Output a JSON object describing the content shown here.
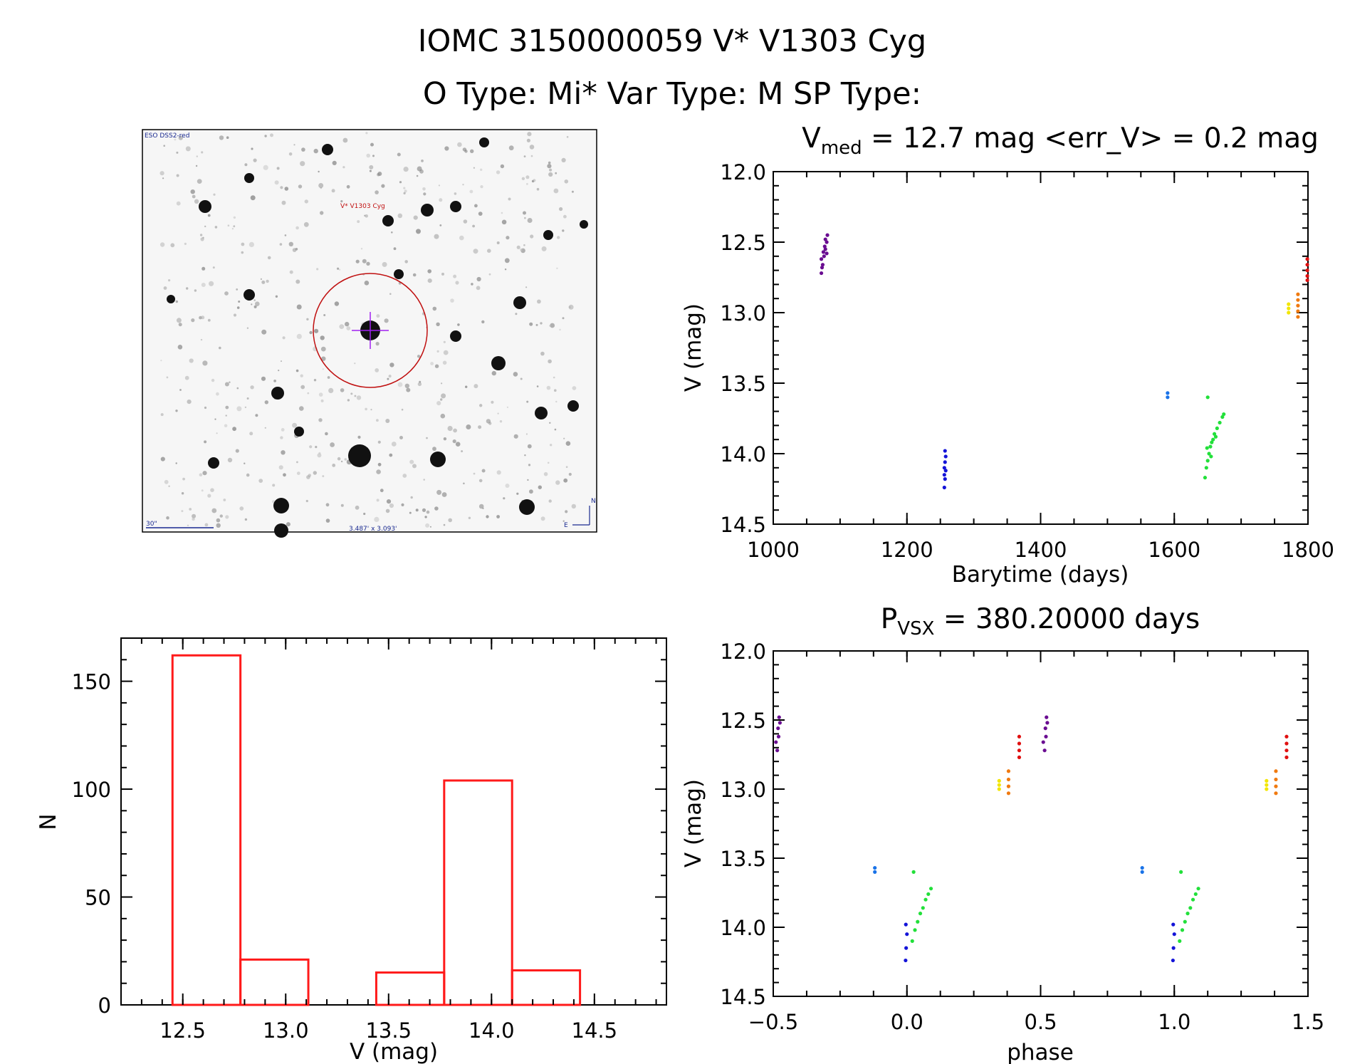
{
  "header": {
    "line1": "IOMC 3150000059   V* V1303 Cyg",
    "line2": "O Type: Mi*  Var Type: M  SP Type:"
  },
  "finder": {
    "survey_label": "ESO DSS2-red",
    "target_label": "V* V1303 Cyg",
    "scale_label": "30\"",
    "fov_label": "3.487' x 3.093'",
    "north_label": "N",
    "east_label": "E"
  },
  "colors": {
    "purple": "#6a0d91",
    "blue": "#1414d8",
    "lightblue": "#1a73e8",
    "green": "#22e03a",
    "yellow": "#f2e600",
    "orange": "#f07a10",
    "red": "#e01010",
    "hist": "#ff1a1a"
  },
  "chart_data": [
    {
      "id": "lightcurve",
      "type": "scatter",
      "title_prefix": "V",
      "title_sub": "med",
      "title_suffix": " = 12.7 mag <err_V> = 0.2 mag",
      "xlabel": "Barytime (days)",
      "ylabel": "V (mag)",
      "xlim": [
        1000,
        1800
      ],
      "ylim": [
        12.0,
        14.5
      ],
      "y_inverted": true,
      "xticks": [
        1000,
        1200,
        1400,
        1600,
        1800
      ],
      "yticks": [
        12.0,
        12.5,
        13.0,
        13.5,
        14.0,
        14.5
      ],
      "series": [
        {
          "name": "purple",
          "color": "#6a0d91",
          "x": [
            1072,
            1074,
            1076,
            1078,
            1080,
            1072,
            1075,
            1078,
            1081,
            1073,
            1077,
            1080
          ],
          "y": [
            12.72,
            12.66,
            12.6,
            12.55,
            12.5,
            12.62,
            12.57,
            12.48,
            12.45,
            12.68,
            12.53,
            12.58
          ]
        },
        {
          "name": "blue",
          "color": "#1414d8",
          "x": [
            1256,
            1257,
            1258,
            1256,
            1257,
            1258,
            1257,
            1256
          ],
          "y": [
            14.24,
            14.18,
            14.12,
            14.1,
            14.06,
            14.02,
            13.98,
            14.15
          ]
        },
        {
          "name": "lightblue",
          "color": "#1a73e8",
          "x": [
            1590,
            1590
          ],
          "y": [
            13.57,
            13.6
          ]
        },
        {
          "name": "green",
          "color": "#22e03a",
          "x": [
            1646,
            1648,
            1650,
            1652,
            1654,
            1656,
            1658,
            1660,
            1664,
            1668,
            1672,
            1674,
            1650,
            1655,
            1662,
            1649
          ],
          "y": [
            14.17,
            14.1,
            14.05,
            14.0,
            13.95,
            13.92,
            13.9,
            13.86,
            13.82,
            13.78,
            13.74,
            13.72,
            13.6,
            14.02,
            13.88,
            13.96
          ]
        },
        {
          "name": "yellow",
          "color": "#f2e600",
          "x": [
            1771,
            1771,
            1771
          ],
          "y": [
            12.94,
            12.97,
            13.0
          ]
        },
        {
          "name": "orange",
          "color": "#f07a10",
          "x": [
            1785,
            1785,
            1785,
            1785,
            1785
          ],
          "y": [
            12.87,
            12.91,
            12.95,
            12.99,
            13.03
          ]
        },
        {
          "name": "red",
          "color": "#e01010",
          "x": [
            1799,
            1799,
            1799,
            1799,
            1799
          ],
          "y": [
            12.62,
            12.66,
            12.7,
            12.74,
            12.77
          ]
        }
      ]
    },
    {
      "id": "histogram",
      "type": "bar",
      "title": "",
      "xlabel": "V (mag)",
      "ylabel": "N",
      "xlim": [
        12.2,
        14.85
      ],
      "ylim": [
        0,
        170
      ],
      "xticks": [
        12.5,
        13.0,
        13.5,
        14.0,
        14.5
      ],
      "yticks": [
        0,
        50,
        100,
        150
      ],
      "bin_edges": [
        12.45,
        12.78,
        13.11,
        13.44,
        13.77,
        14.1,
        14.43
      ],
      "values": [
        162,
        21,
        0,
        15,
        104,
        16
      ]
    },
    {
      "id": "phased",
      "type": "scatter",
      "title_prefix": "P",
      "title_sub": "VSX",
      "title_suffix": " = 380.20000 days",
      "xlabel": "phase",
      "ylabel": "V (mag)",
      "xlim": [
        -0.5,
        1.5
      ],
      "ylim": [
        12.0,
        14.5
      ],
      "y_inverted": true,
      "xticks": [
        -0.5,
        0.0,
        0.5,
        1.0,
        1.5
      ],
      "xtick_labels": [
        "−0.5",
        "0.0",
        "0.5",
        "1.0",
        "1.5"
      ],
      "yticks": [
        12.0,
        12.5,
        13.0,
        13.5,
        14.0,
        14.5
      ],
      "series": [
        {
          "name": "purple",
          "color": "#6a0d91",
          "x": [
            -0.485,
            -0.48,
            -0.475,
            -0.49,
            -0.482,
            -0.478,
            0.515,
            0.52,
            0.525,
            0.51,
            0.518,
            0.522
          ],
          "y": [
            12.72,
            12.62,
            12.52,
            12.66,
            12.56,
            12.48,
            12.72,
            12.62,
            12.52,
            12.66,
            12.56,
            12.48
          ]
        },
        {
          "name": "blue",
          "color": "#1414d8",
          "x": [
            -0.005,
            -0.003,
            0.0,
            -0.004,
            0.995,
            0.997,
            1.0,
            0.996
          ],
          "y": [
            14.24,
            14.15,
            14.05,
            13.98,
            14.24,
            14.15,
            14.05,
            13.98
          ]
        },
        {
          "name": "lightblue",
          "color": "#1a73e8",
          "x": [
            -0.12,
            -0.12,
            0.88,
            0.88
          ],
          "y": [
            13.57,
            13.6,
            13.57,
            13.6
          ]
        },
        {
          "name": "green",
          "color": "#22e03a",
          "x": [
            0.02,
            0.03,
            0.04,
            0.05,
            0.06,
            0.07,
            0.08,
            0.09,
            0.025,
            1.02,
            1.03,
            1.04,
            1.05,
            1.06,
            1.07,
            1.08,
            1.09,
            1.025
          ],
          "y": [
            14.1,
            14.02,
            13.96,
            13.9,
            13.86,
            13.8,
            13.76,
            13.72,
            13.6,
            14.1,
            14.02,
            13.96,
            13.9,
            13.86,
            13.8,
            13.76,
            13.72,
            13.6
          ]
        },
        {
          "name": "yellow",
          "color": "#f2e600",
          "x": [
            0.345,
            0.345,
            0.345,
            1.345,
            1.345,
            1.345
          ],
          "y": [
            12.94,
            12.97,
            13.0,
            12.94,
            12.97,
            13.0
          ]
        },
        {
          "name": "orange",
          "color": "#f07a10",
          "x": [
            0.38,
            0.38,
            0.38,
            0.38,
            1.38,
            1.38,
            1.38,
            1.38
          ],
          "y": [
            12.87,
            12.93,
            12.98,
            13.03,
            12.87,
            12.93,
            12.98,
            13.03
          ]
        },
        {
          "name": "red",
          "color": "#e01010",
          "x": [
            0.42,
            0.42,
            0.42,
            0.42,
            1.42,
            1.42,
            1.42,
            1.42
          ],
          "y": [
            12.62,
            12.67,
            12.72,
            12.77,
            12.62,
            12.67,
            12.72,
            12.77
          ]
        }
      ]
    }
  ]
}
